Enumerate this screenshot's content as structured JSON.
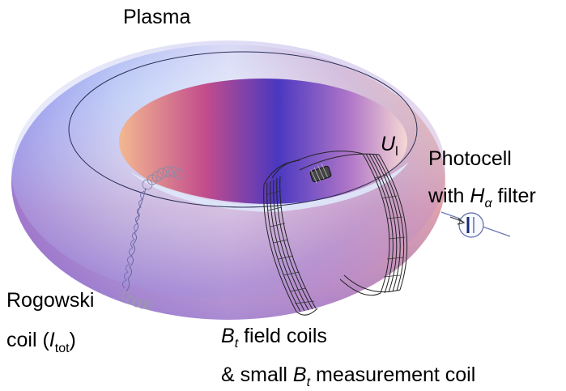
{
  "labels": {
    "plasma": "Plasma",
    "loop_voltage": {
      "symbol": "U",
      "subscript": "l"
    },
    "photocell": {
      "line1": "Photocell",
      "line2_prefix": "with ",
      "symbol": "H",
      "subscript": "α",
      "line2_suffix": " filter"
    },
    "rogowski": {
      "line1": "Rogowski",
      "line2_prefix": "coil (",
      "symbol": "I",
      "subscript": "tot",
      "line2_suffix": ")"
    },
    "field_coils": {
      "line1_symbol": "B",
      "line1_subscript": "t",
      "line1_suffix": " field coils",
      "line2_prefix": "& small ",
      "line2_symbol": "B",
      "line2_subscript": "t",
      "line2_suffix": " measurement coil"
    }
  },
  "colors": {
    "torus_blue": "#7b7ff0",
    "torus_light": "#eef6ff",
    "torus_pink": "#d890b8",
    "torus_orange": "#f4c6a0",
    "coil_wire": "#222222",
    "rogowski_wire": "#8a8aa8"
  }
}
